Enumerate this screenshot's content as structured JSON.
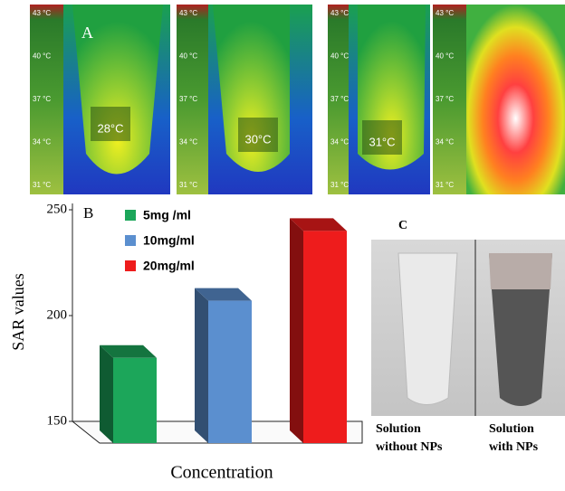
{
  "panel_a": {
    "label": "A",
    "scale": [
      "43 °C",
      "40 °C",
      "37 °C",
      "34 °C",
      "31 °C"
    ],
    "readings": [
      "28°C",
      "30°C",
      "31°C"
    ]
  },
  "chart_data": {
    "type": "bar",
    "label": "B",
    "y_label": "SAR values",
    "x_label": "Concentration",
    "series": [
      {
        "name": "5mg /ml",
        "color": "#1ca65a",
        "values": [
          180
        ]
      },
      {
        "name": "10mg/ml",
        "color": "#5b8fcf",
        "values": [
          207
        ]
      },
      {
        "name": "20mg/ml",
        "color": "#ee1c1c",
        "values": [
          240
        ]
      }
    ],
    "ylim": [
      150,
      250
    ],
    "yticks": [
      150,
      200,
      250
    ]
  },
  "panel_c": {
    "label": "C",
    "captions": [
      "Solution without NPs",
      "Solution with NPs"
    ]
  }
}
